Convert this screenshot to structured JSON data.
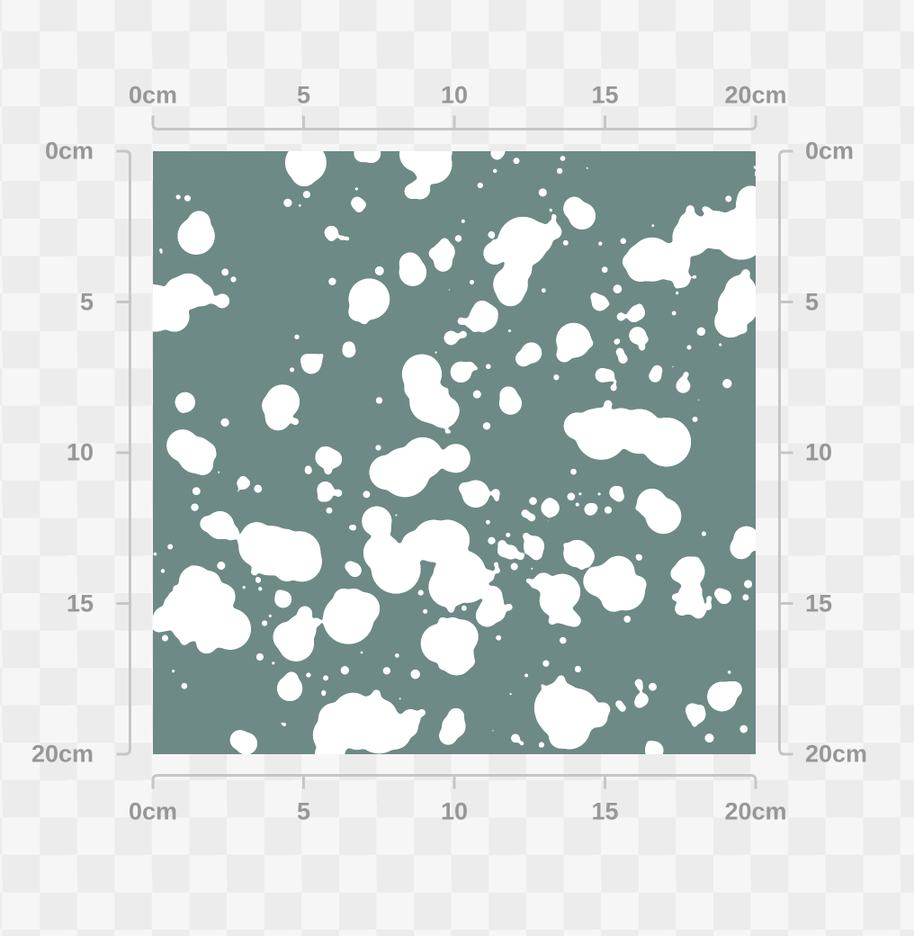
{
  "rulers": {
    "labels": [
      "0cm",
      "5",
      "10",
      "15",
      "20cm"
    ],
    "unit": "cm",
    "range_cm": 20
  },
  "pattern": {
    "name": "white-paint-splatter",
    "size_cm": 20,
    "background_color": "#6d8a87",
    "splat_color": "#ffffff",
    "seed": 5,
    "clusters": 120,
    "dots": 80
  },
  "colors": {
    "checker_light": "#f6f6f6",
    "checker_dark": "#ececec",
    "ruler_line": "#c6c6c6",
    "ruler_text": "#979797"
  }
}
